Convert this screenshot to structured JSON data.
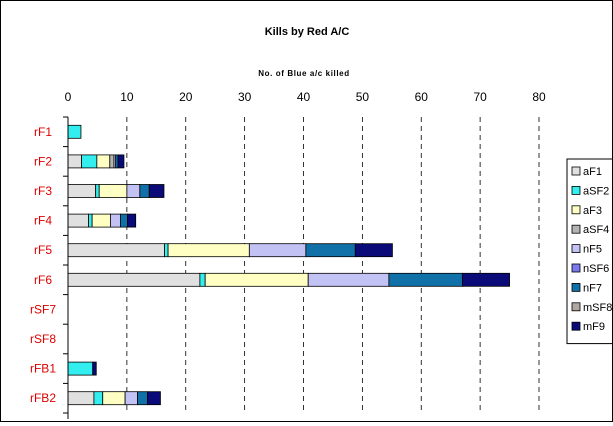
{
  "chart_data": {
    "type": "bar",
    "orientation": "horizontal",
    "stacked": true,
    "title": "Kills by Red A/C",
    "xlabel": "No. of Blue a/c killed",
    "ylabel": "",
    "xlim": [
      0,
      80
    ],
    "x_ticks": [
      0,
      10,
      20,
      30,
      40,
      50,
      60,
      70,
      80
    ],
    "grid": "vertical dashed",
    "legend_position": "right",
    "categories": [
      "rF1",
      "rF2",
      "rF3",
      "rF4",
      "rF5",
      "rF6",
      "rSF7",
      "rSF8",
      "rFB1",
      "rFB2"
    ],
    "series": [
      {
        "name": "aF1",
        "color": "#e0e0e0",
        "values": [
          0,
          2.3,
          4.7,
          3.5,
          16.4,
          22.4,
          0,
          0,
          0,
          4.4
        ]
      },
      {
        "name": "aSF2",
        "color": "#33eeee",
        "values": [
          2.2,
          2.6,
          0.6,
          0.6,
          0.6,
          0.9,
          0,
          0,
          4.2,
          1.5
        ]
      },
      {
        "name": "aF3",
        "color": "#ffffc4",
        "values": [
          0,
          2.2,
          4.7,
          3.1,
          13.8,
          17.5,
          0,
          0,
          0,
          3.8
        ]
      },
      {
        "name": "aSF4",
        "color": "#b4b4b4",
        "values": [
          0,
          0.7,
          0,
          0,
          0,
          0,
          0,
          0,
          0,
          0
        ]
      },
      {
        "name": "nF5",
        "color": "#c2c2f4",
        "values": [
          0,
          0.3,
          2.2,
          1.7,
          9.6,
          13.7,
          0,
          0,
          0,
          2.1
        ]
      },
      {
        "name": "nSF6",
        "color": "#7a7aee",
        "values": [
          0,
          0,
          0,
          0,
          0,
          0,
          0,
          0,
          0,
          0
        ]
      },
      {
        "name": "nF7",
        "color": "#1070a8",
        "values": [
          0,
          0.4,
          1.6,
          1.2,
          8.4,
          12.5,
          0,
          0,
          0,
          1.7
        ]
      },
      {
        "name": "mSF8",
        "color": "#b0a8a0",
        "values": [
          0,
          0,
          0,
          0,
          0,
          0,
          0,
          0,
          0,
          0
        ]
      },
      {
        "name": "mF9",
        "color": "#0a0a78",
        "values": [
          0,
          1.0,
          2.5,
          1.4,
          6.3,
          8.0,
          0,
          0,
          0.6,
          2.2
        ]
      }
    ]
  },
  "colors": {
    "category_label": "#dd0000",
    "bar_outline": "#000000",
    "grid": "#000000"
  }
}
